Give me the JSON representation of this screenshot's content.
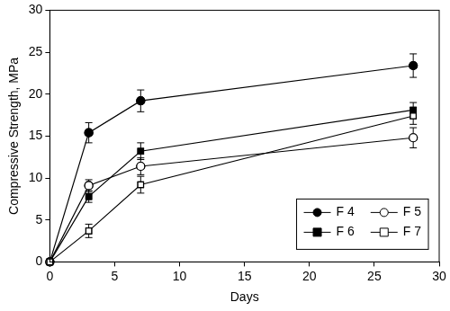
{
  "chart_data": {
    "type": "line",
    "x_label": "Days",
    "y_label": "Compressive Strength, MPa",
    "x": [
      0,
      3,
      7,
      28
    ],
    "series": [
      {
        "name": "F 4",
        "color": "#000000",
        "marker": "circle",
        "line_style": "solid",
        "values": [
          0,
          15.4,
          19.2,
          23.4
        ],
        "errors": [
          0,
          1.2,
          1.3,
          1.4
        ]
      },
      {
        "name": "F 5",
        "color": "#000000",
        "marker": "open circle",
        "line_style": "solid",
        "values": [
          0,
          9.1,
          11.4,
          14.8
        ],
        "errors": [
          0,
          0.7,
          1.0,
          1.2
        ]
      },
      {
        "name": "F 6",
        "color": "#000000",
        "marker": "square",
        "line_style": "solid",
        "values": [
          0,
          7.8,
          13.2,
          18.1
        ],
        "errors": [
          0,
          0.7,
          1.0,
          0.9
        ]
      },
      {
        "name": "F 7",
        "color": "#000000",
        "marker": "open square",
        "line_style": "solid",
        "values": [
          0,
          3.7,
          9.2,
          17.4
        ],
        "errors": [
          0,
          0.8,
          1.0,
          1.0
        ]
      }
    ],
    "xlim": [
      0,
      30
    ],
    "xticks": [
      0,
      5,
      10,
      15,
      20,
      25,
      30
    ],
    "ylim": [
      0,
      30
    ],
    "yticks": [
      0,
      5,
      10,
      15,
      20,
      25,
      30
    ],
    "grid": false,
    "legend": "lower right"
  }
}
